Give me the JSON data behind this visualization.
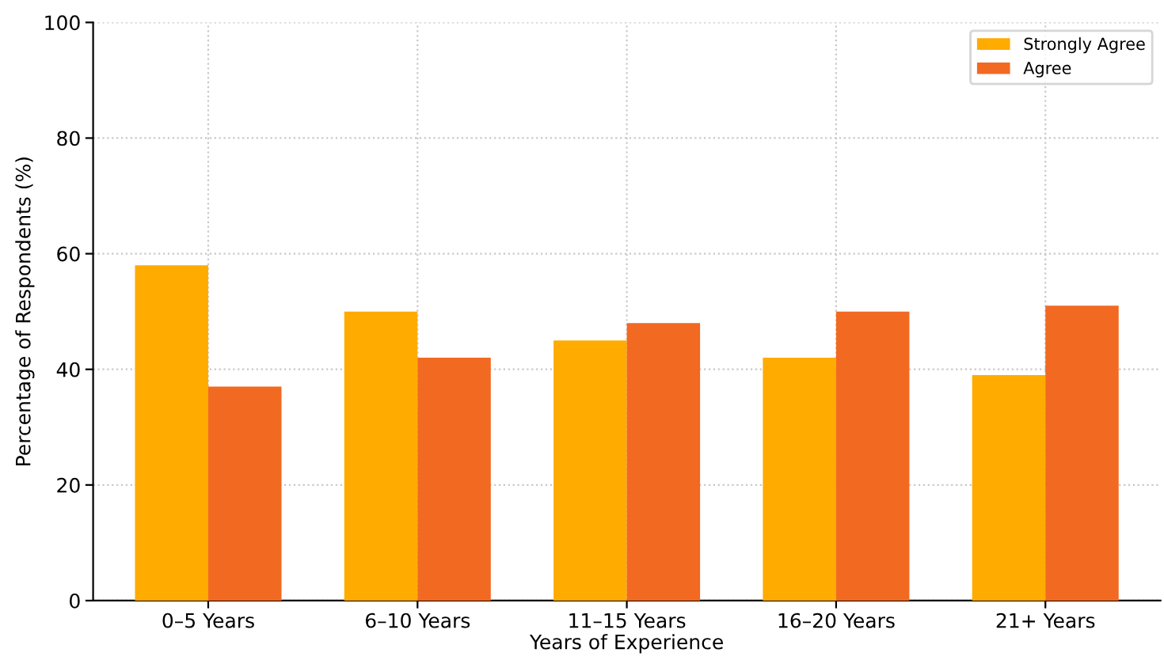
{
  "chart_data": {
    "type": "bar",
    "xlabel": "Years of Experience",
    "ylabel": "Percentage of Respondents (%)",
    "categories": [
      "0–5 Years",
      "6–10 Years",
      "11–15 Years",
      "16–20 Years",
      "21+ Years"
    ],
    "series": [
      {
        "name": "Strongly Agree",
        "color": "#ffab00",
        "values": [
          58,
          50,
          45,
          42,
          39
        ]
      },
      {
        "name": "Agree",
        "color": "#f26922",
        "values": [
          37,
          42,
          48,
          50,
          51
        ]
      }
    ],
    "ylim": [
      0,
      100
    ],
    "yticks": [
      0,
      20,
      40,
      60,
      80,
      100
    ],
    "grid": true,
    "legend": "top right"
  }
}
